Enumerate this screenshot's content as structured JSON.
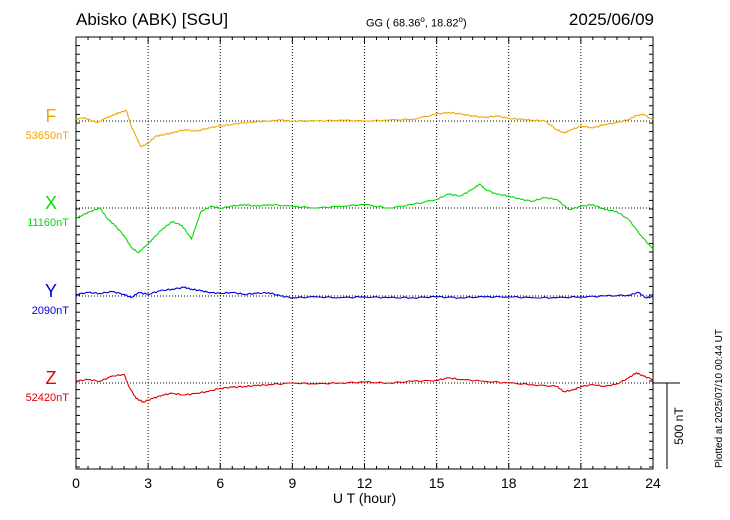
{
  "header": {
    "station": "Abisko (ABK)  [SGU]",
    "coords_prefix": "GG ( 68.36",
    "coords_mid": ",  18.82",
    "coords_suffix": ")",
    "date": "2025/06/09",
    "plotted_at": "Plotted at 2025/07/10 00:44 UT"
  },
  "chart_data": {
    "type": "line",
    "xlabel": "U T (hour)",
    "xlim": [
      0,
      24
    ],
    "xticks": [
      "0",
      "3",
      "6",
      "9",
      "12",
      "15",
      "18",
      "21",
      "24"
    ],
    "scale_bar_label": "500 nT",
    "scale_bar_nT": 500,
    "series": [
      {
        "name": "F",
        "baseline_label": "53650nT",
        "baseline_nT": 53650,
        "color": "#f0a800",
        "x": [
          0,
          0.3,
          0.6,
          0.9,
          1.2,
          1.5,
          1.8,
          2.1,
          2.3,
          2.5,
          2.7,
          3.0,
          3.3,
          3.6,
          4.0,
          4.5,
          5.0,
          5.5,
          6.0,
          6.5,
          7.0,
          7.5,
          8.0,
          8.5,
          9,
          10,
          11,
          12,
          13,
          14,
          15,
          15.5,
          16,
          16.5,
          17,
          17.5,
          18,
          18.5,
          19,
          19.5,
          20,
          20.3,
          20.6,
          21,
          21.5,
          22,
          22.5,
          23,
          23.3,
          23.6,
          24
        ],
        "values": [
          53660,
          53670,
          53655,
          53640,
          53665,
          53680,
          53700,
          53710,
          53620,
          53560,
          53500,
          53520,
          53560,
          53570,
          53580,
          53600,
          53590,
          53610,
          53620,
          53630,
          53640,
          53645,
          53650,
          53655,
          53650,
          53650,
          53655,
          53650,
          53655,
          53660,
          53690,
          53700,
          53690,
          53680,
          53670,
          53680,
          53665,
          53660,
          53655,
          53650,
          53600,
          53580,
          53600,
          53620,
          53610,
          53630,
          53640,
          53660,
          53680,
          53690,
          53655
        ]
      },
      {
        "name": "X",
        "baseline_label": "11160nT",
        "baseline_nT": 11160,
        "color": "#00dd00",
        "x": [
          0,
          0.3,
          0.6,
          1.0,
          1.3,
          1.6,
          2.0,
          2.3,
          2.6,
          2.9,
          3.2,
          3.6,
          4.0,
          4.4,
          4.8,
          5.0,
          5.2,
          5.6,
          6.0,
          6.5,
          7.0,
          7.5,
          8,
          9,
          10,
          11,
          12,
          13,
          14,
          15,
          15.5,
          16,
          16.5,
          16.8,
          17,
          17.5,
          18,
          18.5,
          19,
          19.5,
          20,
          20.5,
          21,
          21.5,
          22,
          22.5,
          23,
          23.5,
          24
        ],
        "values": [
          11100,
          11120,
          11140,
          11160,
          11100,
          11060,
          11000,
          10930,
          10900,
          10940,
          10980,
          11040,
          11080,
          11060,
          10980,
          11060,
          11140,
          11170,
          11160,
          11170,
          11180,
          11170,
          11180,
          11170,
          11160,
          11170,
          11180,
          11160,
          11180,
          11210,
          11240,
          11230,
          11270,
          11300,
          11270,
          11240,
          11230,
          11210,
          11200,
          11220,
          11210,
          11150,
          11170,
          11180,
          11150,
          11140,
          11090,
          11000,
          10920
        ]
      },
      {
        "name": "Y",
        "baseline_label": "2090nT",
        "baseline_nT": 2090,
        "color": "#0000dd",
        "x": [
          0,
          0.5,
          1.0,
          1.5,
          2.0,
          2.3,
          2.6,
          3.0,
          3.5,
          4.0,
          4.5,
          4.8,
          5.2,
          5.6,
          6.0,
          6.5,
          7.0,
          7.5,
          8.0,
          8.5,
          9,
          10,
          11,
          12,
          13,
          14,
          15,
          16,
          17,
          18,
          19,
          20,
          21,
          22,
          23,
          23.4,
          23.7,
          24
        ],
        "values": [
          2100,
          2110,
          2105,
          2115,
          2100,
          2080,
          2110,
          2100,
          2120,
          2130,
          2140,
          2130,
          2120,
          2110,
          2105,
          2110,
          2100,
          2105,
          2110,
          2090,
          2080,
          2085,
          2080,
          2085,
          2080,
          2080,
          2085,
          2080,
          2085,
          2085,
          2080,
          2080,
          2085,
          2090,
          2095,
          2110,
          2080,
          2085
        ]
      },
      {
        "name": "Z",
        "baseline_label": "52420nT",
        "baseline_nT": 52420,
        "color": "#e00000",
        "x": [
          0,
          0.5,
          1.0,
          1.5,
          2.0,
          2.2,
          2.5,
          2.8,
          3.2,
          3.6,
          4.0,
          4.5,
          5.0,
          5.5,
          6.0,
          6.5,
          7.0,
          7.5,
          8,
          9,
          10,
          11,
          12,
          13,
          14,
          15,
          15.5,
          16,
          17,
          18,
          19,
          20,
          20.3,
          20.7,
          21,
          21.5,
          22,
          22.5,
          23,
          23.3,
          23.6,
          24
        ],
        "values": [
          52430,
          52440,
          52430,
          52460,
          52470,
          52400,
          52330,
          52310,
          52330,
          52350,
          52360,
          52350,
          52360,
          52370,
          52390,
          52395,
          52400,
          52405,
          52410,
          52420,
          52415,
          52420,
          52425,
          52420,
          52430,
          52435,
          52450,
          52440,
          52430,
          52420,
          52410,
          52400,
          52370,
          52380,
          52400,
          52410,
          52400,
          52415,
          52450,
          52480,
          52460,
          52440
        ]
      }
    ]
  }
}
